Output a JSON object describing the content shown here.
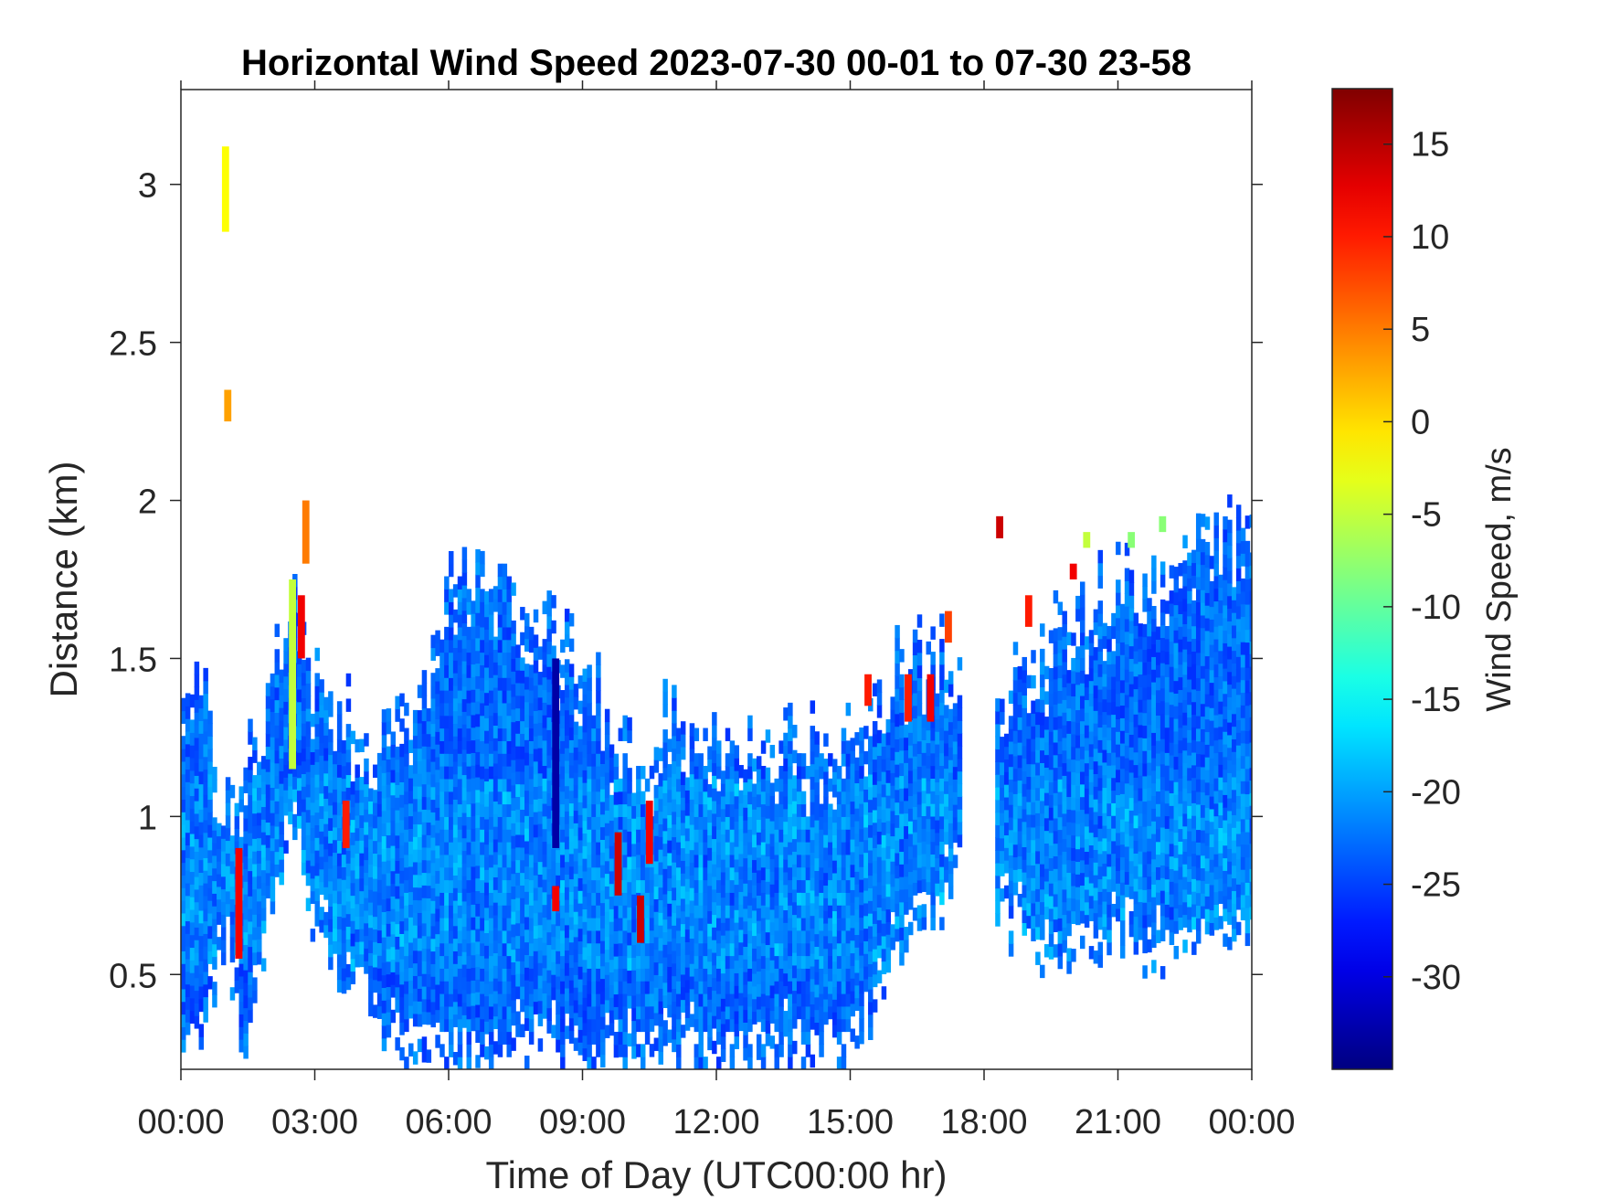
{
  "chart_data": {
    "type": "heatmap",
    "title": "Horizontal Wind Speed 2023-07-30 00-01 to 07-30 23-58",
    "xlabel": "Time of Day (UTC00:00 hr)",
    "ylabel": "Distance (km)",
    "x_ticks": [
      "00:00",
      "03:00",
      "06:00",
      "09:00",
      "12:00",
      "15:00",
      "18:00",
      "21:00",
      "00:00"
    ],
    "xlim_hours": [
      0,
      24
    ],
    "y_ticks": [
      "0.5",
      "1",
      "1.5",
      "2",
      "2.5",
      "3"
    ],
    "y_tick_values": [
      0.5,
      1,
      1.5,
      2,
      2.5,
      3
    ],
    "ylim": [
      0.2,
      3.3
    ],
    "grid": false,
    "colorbar": {
      "label": "Wind Speed, m/s",
      "ticks": [
        "15",
        "10",
        "5",
        "0",
        "-5",
        "-10",
        "-15",
        "-20",
        "-25",
        "-30"
      ],
      "tick_values": [
        15,
        10,
        5,
        0,
        -5,
        -10,
        -15,
        -20,
        -25,
        -30
      ],
      "range": [
        -35,
        18
      ],
      "colormap": "jet",
      "colors": [
        "#00008f",
        "#0000ff",
        "#00ffff",
        "#ffff00",
        "#ff0000",
        "#800000"
      ]
    },
    "data_coverage": {
      "time_resolution_hours": 0.1,
      "segments_hours": [
        [
          0.0,
          17.5
        ],
        [
          18.25,
          24.0
        ]
      ],
      "typical_top_km": [
        [
          0.0,
          1.3
        ],
        [
          0.5,
          1.45
        ],
        [
          1.0,
          1.0
        ],
        [
          1.5,
          1.2
        ],
        [
          2.0,
          1.35
        ],
        [
          2.5,
          1.75
        ],
        [
          3.0,
          1.4
        ],
        [
          3.5,
          1.35
        ],
        [
          4.0,
          1.25
        ],
        [
          4.5,
          1.2
        ],
        [
          5.0,
          1.35
        ],
        [
          5.5,
          1.45
        ],
        [
          6.0,
          1.72
        ],
        [
          7.0,
          1.82
        ],
        [
          7.5,
          1.8
        ],
        [
          8.0,
          1.65
        ],
        [
          8.5,
          1.55
        ],
        [
          9.0,
          1.5
        ],
        [
          9.5,
          1.35
        ],
        [
          10.0,
          1.2
        ],
        [
          10.5,
          1.25
        ],
        [
          11.0,
          1.35
        ],
        [
          12.0,
          1.25
        ],
        [
          13.0,
          1.25
        ],
        [
          14.0,
          1.22
        ],
        [
          15.0,
          1.3
        ],
        [
          16.0,
          1.45
        ],
        [
          16.5,
          1.5
        ],
        [
          17.0,
          1.55
        ],
        [
          17.5,
          1.4
        ],
        [
          18.25,
          1.4
        ],
        [
          19.0,
          1.5
        ],
        [
          20.0,
          1.65
        ],
        [
          21.0,
          1.75
        ],
        [
          22.0,
          1.8
        ],
        [
          23.0,
          1.85
        ],
        [
          24.0,
          1.95
        ]
      ],
      "typical_bottom_km": [
        [
          0.0,
          0.25
        ],
        [
          0.5,
          0.3
        ],
        [
          1.0,
          0.5
        ],
        [
          1.5,
          0.2
        ],
        [
          2.0,
          0.7
        ],
        [
          2.5,
          0.95
        ],
        [
          3.0,
          0.6
        ],
        [
          3.5,
          0.45
        ],
        [
          4.0,
          0.5
        ],
        [
          4.5,
          0.25
        ],
        [
          5.0,
          0.2
        ],
        [
          6.0,
          0.2
        ],
        [
          15.0,
          0.2
        ],
        [
          15.5,
          0.35
        ],
        [
          16.0,
          0.5
        ],
        [
          17.0,
          0.65
        ],
        [
          17.5,
          0.8
        ],
        [
          18.25,
          0.65
        ],
        [
          19.0,
          0.55
        ],
        [
          20.0,
          0.5
        ],
        [
          21.0,
          0.55
        ],
        [
          22.0,
          0.5
        ],
        [
          23.0,
          0.55
        ],
        [
          24.0,
          0.55
        ]
      ],
      "typical_wind_speed_ms": -23
    },
    "features": [
      {
        "t": 1.0,
        "h0": 2.85,
        "h1": 3.12,
        "v": -2
      },
      {
        "t": 1.05,
        "h0": 2.25,
        "h1": 2.35,
        "v": 3
      },
      {
        "t": 1.3,
        "h0": 0.55,
        "h1": 0.9,
        "v": 12
      },
      {
        "t": 2.5,
        "h0": 1.15,
        "h1": 1.75,
        "v": -5
      },
      {
        "t": 2.7,
        "h0": 1.5,
        "h1": 1.7,
        "v": 12
      },
      {
        "t": 2.8,
        "h0": 1.8,
        "h1": 2.0,
        "v": 5
      },
      {
        "t": 3.7,
        "h0": 0.9,
        "h1": 1.05,
        "v": 10
      },
      {
        "t": 8.4,
        "h0": 0.7,
        "h1": 0.78,
        "v": 12
      },
      {
        "t": 8.4,
        "h0": 0.9,
        "h1": 1.5,
        "v": -33
      },
      {
        "t": 9.8,
        "h0": 0.75,
        "h1": 0.95,
        "v": 14
      },
      {
        "t": 10.3,
        "h0": 0.6,
        "h1": 0.75,
        "v": 14
      },
      {
        "t": 10.5,
        "h0": 0.85,
        "h1": 1.05,
        "v": 12
      },
      {
        "t": 15.4,
        "h0": 1.35,
        "h1": 1.45,
        "v": 10
      },
      {
        "t": 16.3,
        "h0": 1.3,
        "h1": 1.45,
        "v": 10
      },
      {
        "t": 16.8,
        "h0": 1.3,
        "h1": 1.45,
        "v": 12
      },
      {
        "t": 17.2,
        "h0": 1.55,
        "h1": 1.65,
        "v": 8
      },
      {
        "t": 18.35,
        "h0": 1.88,
        "h1": 1.95,
        "v": 14
      },
      {
        "t": 19.0,
        "h0": 1.6,
        "h1": 1.7,
        "v": 10
      },
      {
        "t": 20.0,
        "h0": 1.75,
        "h1": 1.8,
        "v": 12
      },
      {
        "t": 20.3,
        "h0": 1.85,
        "h1": 1.9,
        "v": -5
      },
      {
        "t": 21.3,
        "h0": 1.85,
        "h1": 1.9,
        "v": -8
      },
      {
        "t": 22.0,
        "h0": 1.9,
        "h1": 1.95,
        "v": -8
      }
    ]
  }
}
